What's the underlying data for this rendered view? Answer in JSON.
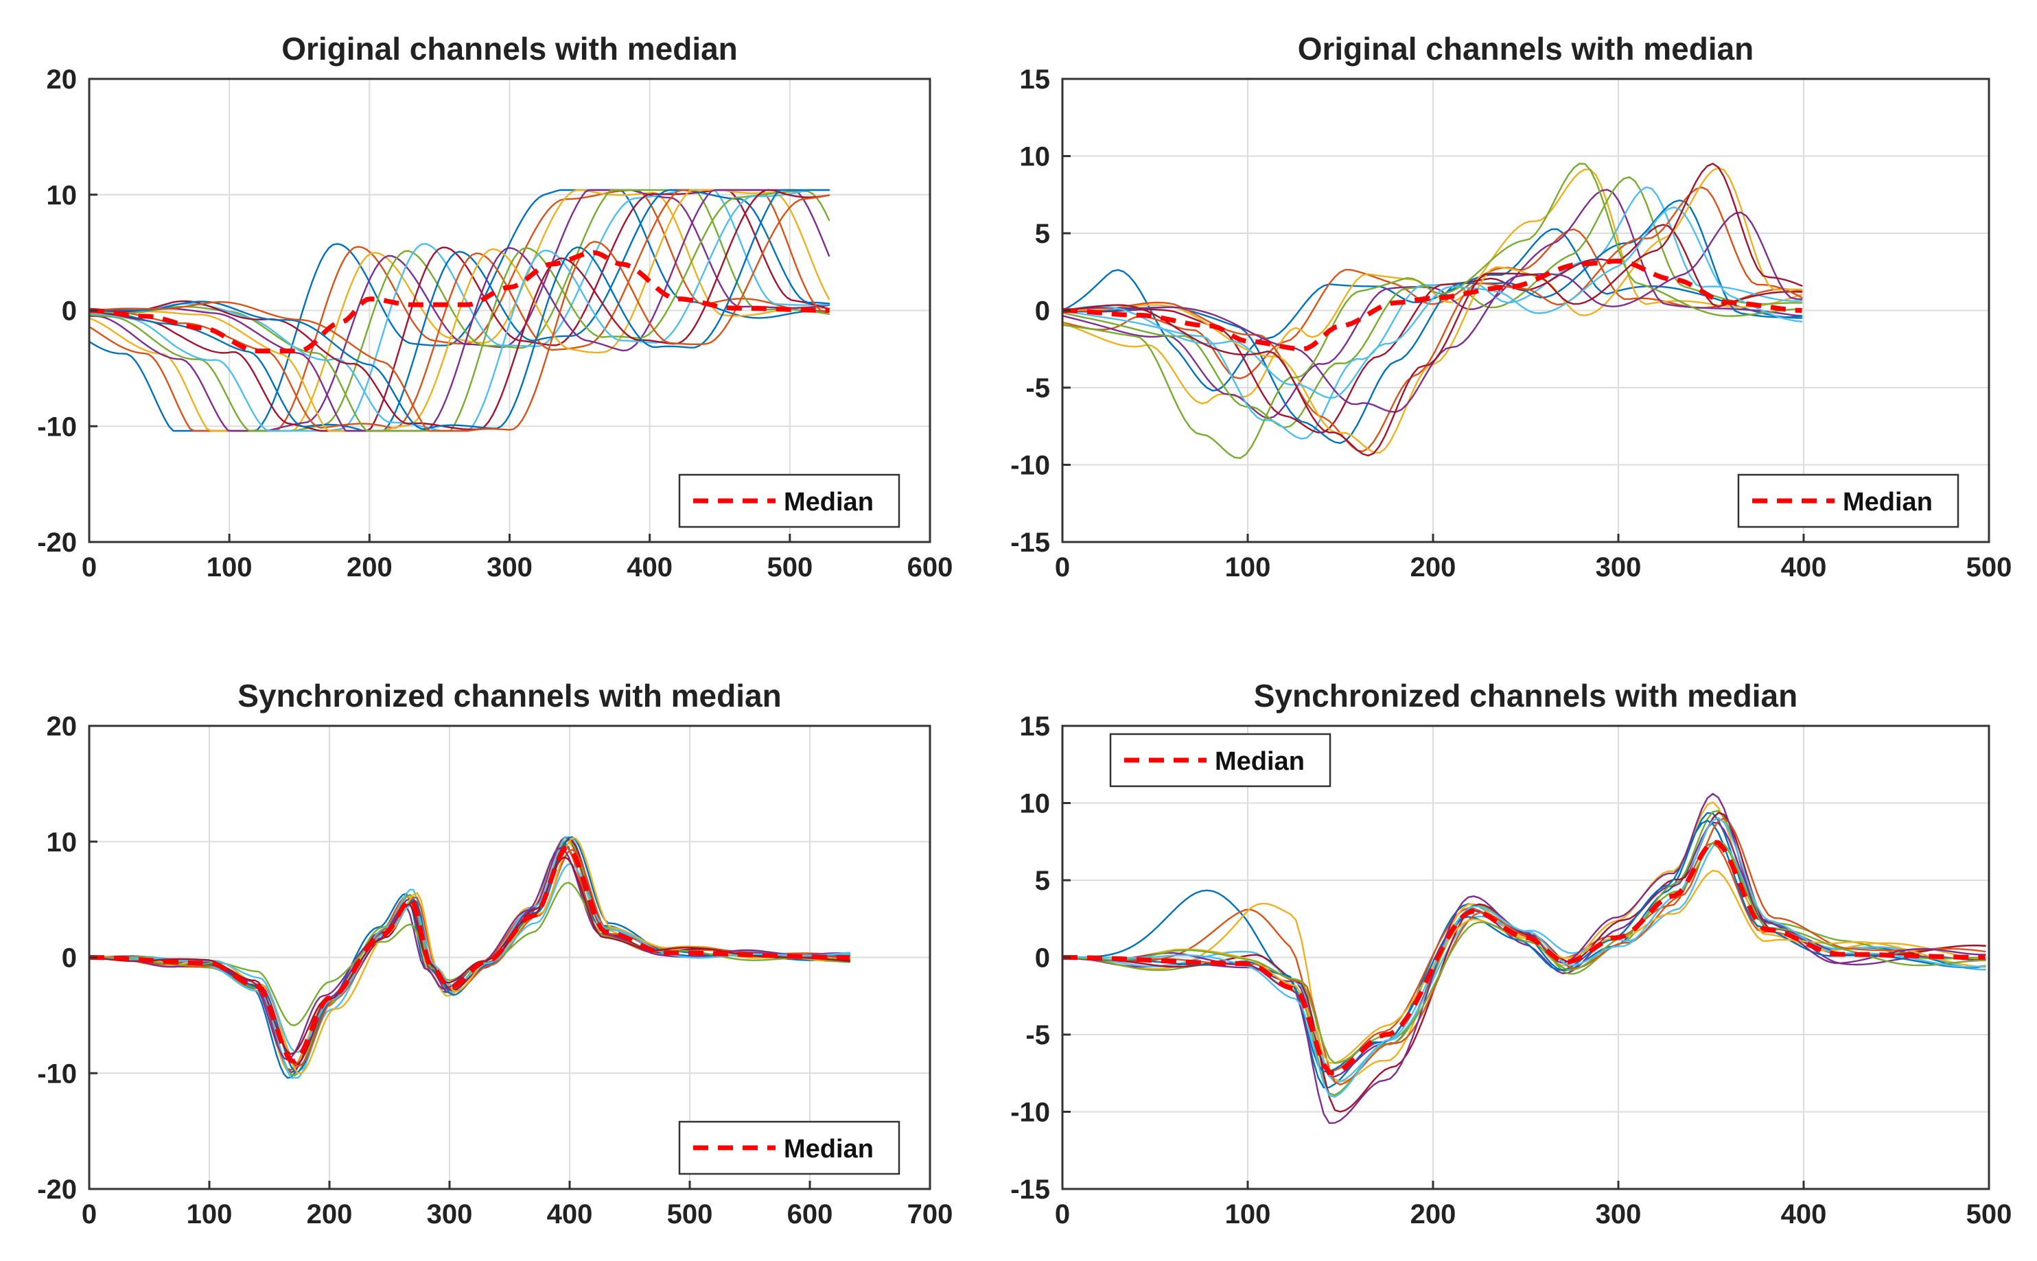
{
  "palette": [
    "#0072BD",
    "#D95319",
    "#EDB120",
    "#7E2F8E",
    "#77AC30",
    "#4DBEEE",
    "#A2142F"
  ],
  "median_color": "#ff0000",
  "chart_data": [
    {
      "id": "top-left",
      "type": "line",
      "title": "Original channels with median",
      "xlim": [
        0,
        600
      ],
      "ylim": [
        -20,
        20
      ],
      "xticks": [
        0,
        100,
        200,
        300,
        400,
        500,
        600
      ],
      "yticks": [
        -20,
        -10,
        0,
        10,
        20
      ],
      "legend": {
        "label": "Median",
        "position": "bottom-right"
      },
      "template": {
        "length": 530,
        "clip": 10.4,
        "noise": 0.5,
        "points": [
          [
            0,
            0
          ],
          [
            60,
            -0.5
          ],
          [
            120,
            -4
          ],
          [
            160,
            -10.4
          ],
          [
            210,
            -10.4
          ],
          [
            270,
            5.2
          ],
          [
            325,
            -2.8
          ],
          [
            350,
            -3
          ],
          [
            420,
            10.4
          ],
          [
            470,
            10.4
          ],
          [
            520,
            0.3
          ],
          [
            600,
            0
          ]
        ]
      },
      "channels": [
        {
          "offset": -95,
          "scale": 1.0
        },
        {
          "offset": -80,
          "scale": 1.0
        },
        {
          "offset": -68,
          "scale": 1.0
        },
        {
          "offset": -55,
          "scale": 1.0
        },
        {
          "offset": -42,
          "scale": 1.0
        },
        {
          "offset": -30,
          "scale": 1.0
        },
        {
          "offset": -18,
          "scale": 1.0
        },
        {
          "offset": -6,
          "scale": 1.0
        },
        {
          "offset": 6,
          "scale": 1.0
        },
        {
          "offset": 18,
          "scale": 1.0
        },
        {
          "offset": 30,
          "scale": 1.0
        },
        {
          "offset": 42,
          "scale": 1.0
        },
        {
          "offset": 55,
          "scale": 1.0
        },
        {
          "offset": 68,
          "scale": 1.0
        },
        {
          "offset": 80,
          "scale": 1.0
        },
        {
          "offset": 90,
          "scale": 1.0
        }
      ],
      "median": [
        [
          0,
          0
        ],
        [
          40,
          -0.5
        ],
        [
          80,
          -1.5
        ],
        [
          120,
          -3.5
        ],
        [
          150,
          -3.5
        ],
        [
          180,
          -1
        ],
        [
          200,
          1
        ],
        [
          230,
          0.5
        ],
        [
          270,
          0.5
        ],
        [
          300,
          2
        ],
        [
          330,
          4
        ],
        [
          360,
          5
        ],
        [
          380,
          4
        ],
        [
          420,
          1
        ],
        [
          460,
          0.2
        ],
        [
          530,
          0
        ]
      ]
    },
    {
      "id": "top-right",
      "type": "line",
      "title": "Original channels with median",
      "xlim": [
        0,
        500
      ],
      "ylim": [
        -15,
        15
      ],
      "xticks": [
        0,
        100,
        200,
        300,
        400,
        500
      ],
      "yticks": [
        -15,
        -10,
        -5,
        0,
        5,
        10,
        15
      ],
      "legend": {
        "label": "Median",
        "position": "bottom-right"
      },
      "template": {
        "length": 400,
        "clip": 0,
        "noise": 0.7,
        "points": [
          [
            0,
            0
          ],
          [
            80,
            -1.5
          ],
          [
            115,
            -6.5
          ],
          [
            135,
            -7.8
          ],
          [
            165,
            -3
          ],
          [
            200,
            1.8
          ],
          [
            225,
            1.8
          ],
          [
            245,
            0.6
          ],
          [
            290,
            3.5
          ],
          [
            320,
            7
          ],
          [
            350,
            0.8
          ],
          [
            400,
            0.3
          ]
        ]
      },
      "channels": [
        {
          "offset": -55,
          "scale": 0.85,
          "pre": 5.2,
          "preAt": 40
        },
        {
          "offset": -45,
          "scale": 0.9,
          "pre": 4.4,
          "preAt": 70
        },
        {
          "offset": -35,
          "scale": 1.35,
          "pre": 4.8,
          "preAt": 110
        },
        {
          "offset": -25,
          "scale": 1.0
        },
        {
          "offset": -15,
          "scale": 1.1
        },
        {
          "offset": -5,
          "scale": 1.2
        },
        {
          "offset": 5,
          "scale": 0.95
        },
        {
          "offset": 15,
          "scale": 1.0
        },
        {
          "offset": 25,
          "scale": 1.1
        },
        {
          "offset": 35,
          "scale": 1.25
        },
        {
          "offset": 45,
          "scale": 0.9
        },
        {
          "offset": -40,
          "scale": 1.25
        },
        {
          "offset": 10,
          "scale": 0.8
        },
        {
          "offset": 30,
          "scale": 1.3
        }
      ],
      "median": [
        [
          0,
          0
        ],
        [
          40,
          -0.3
        ],
        [
          80,
          -1
        ],
        [
          100,
          -2
        ],
        [
          130,
          -2.5
        ],
        [
          150,
          -1
        ],
        [
          180,
          0.5
        ],
        [
          200,
          0.8
        ],
        [
          240,
          1.5
        ],
        [
          280,
          3
        ],
        [
          300,
          3.2
        ],
        [
          330,
          2
        ],
        [
          360,
          0.5
        ],
        [
          400,
          0
        ]
      ]
    },
    {
      "id": "bottom-left",
      "type": "line",
      "title": "Synchronized channels with median",
      "xlim": [
        0,
        700
      ],
      "ylim": [
        -20,
        20
      ],
      "xticks": [
        0,
        100,
        200,
        300,
        400,
        500,
        600,
        700
      ],
      "yticks": [
        -20,
        -10,
        0,
        10,
        20
      ],
      "legend": {
        "label": "Median",
        "position": "bottom-right"
      },
      "template": {
        "length": 635,
        "clip": 10.4,
        "noise": 0.3,
        "points": [
          [
            0,
            0
          ],
          [
            100,
            -0.5
          ],
          [
            140,
            -2.5
          ],
          [
            170,
            -10
          ],
          [
            200,
            -4
          ],
          [
            245,
            2.2
          ],
          [
            268,
            5.3
          ],
          [
            285,
            -1
          ],
          [
            300,
            -3
          ],
          [
            330,
            -0.5
          ],
          [
            370,
            4
          ],
          [
            398,
            10.3
          ],
          [
            430,
            2.5
          ],
          [
            480,
            0.5
          ],
          [
            635,
            0
          ]
        ]
      },
      "channels": [
        {
          "offset": -4,
          "scale": 1.0
        },
        {
          "offset": -3,
          "scale": 0.95
        },
        {
          "offset": -2,
          "scale": 1.02
        },
        {
          "offset": -1,
          "scale": 0.98
        },
        {
          "offset": 0,
          "scale": 1.0
        },
        {
          "offset": 1,
          "scale": 1.05
        },
        {
          "offset": 2,
          "scale": 0.97
        },
        {
          "offset": 3,
          "scale": 1.0
        },
        {
          "offset": 4,
          "scale": 0.93
        },
        {
          "offset": 5,
          "scale": 1.03
        },
        {
          "offset": -5,
          "scale": 0.9
        },
        {
          "offset": 0,
          "scale": 0.6
        },
        {
          "offset": 2,
          "scale": 0.8
        },
        {
          "offset": -2,
          "scale": 0.85
        }
      ],
      "median": [
        [
          0,
          0
        ],
        [
          100,
          -0.5
        ],
        [
          140,
          -2.5
        ],
        [
          170,
          -9
        ],
        [
          200,
          -3.5
        ],
        [
          245,
          2
        ],
        [
          268,
          5
        ],
        [
          285,
          -0.8
        ],
        [
          300,
          -2.6
        ],
        [
          330,
          -0.4
        ],
        [
          370,
          3.6
        ],
        [
          398,
          9.5
        ],
        [
          430,
          2.2
        ],
        [
          480,
          0.4
        ],
        [
          635,
          0
        ]
      ]
    },
    {
      "id": "bottom-right",
      "type": "line",
      "title": "Synchronized channels with median",
      "xlim": [
        0,
        500
      ],
      "ylim": [
        -15,
        15
      ],
      "xticks": [
        0,
        100,
        200,
        300,
        400,
        500
      ],
      "yticks": [
        -15,
        -10,
        -5,
        0,
        5,
        10,
        15
      ],
      "legend": {
        "label": "Median",
        "position": "top-left"
      },
      "template": {
        "length": 500,
        "clip": 0,
        "noise": 0.5,
        "points": [
          [
            0,
            0
          ],
          [
            100,
            -0.5
          ],
          [
            125,
            -2
          ],
          [
            145,
            -9
          ],
          [
            175,
            -6
          ],
          [
            222,
            3.3
          ],
          [
            250,
            1.5
          ],
          [
            272,
            -0.5
          ],
          [
            300,
            1.5
          ],
          [
            330,
            4.5
          ],
          [
            352,
            9
          ],
          [
            380,
            2
          ],
          [
            420,
            0.3
          ],
          [
            500,
            0
          ]
        ]
      },
      "channels": [
        {
          "offset": -3,
          "scale": 1.0,
          "pre": 5.4,
          "preAt": 80
        },
        {
          "offset": -2,
          "scale": 0.9,
          "pre": 4.3,
          "preAt": 105
        },
        {
          "offset": -1,
          "scale": 1.15,
          "pre": 4.8,
          "preAt": 120
        },
        {
          "offset": 0,
          "scale": 0.95
        },
        {
          "offset": 1,
          "scale": 1.05
        },
        {
          "offset": 2,
          "scale": 0.85
        },
        {
          "offset": 3,
          "scale": 1.1
        },
        {
          "offset": -4,
          "scale": 0.9
        },
        {
          "offset": 4,
          "scale": 1.0
        },
        {
          "offset": 0,
          "scale": 0.7
        },
        {
          "offset": -1,
          "scale": 1.2
        },
        {
          "offset": 2,
          "scale": 0.8
        },
        {
          "offset": 1,
          "scale": 0.95
        }
      ],
      "median": [
        [
          0,
          0
        ],
        [
          100,
          -0.4
        ],
        [
          125,
          -2
        ],
        [
          145,
          -7.5
        ],
        [
          175,
          -5
        ],
        [
          222,
          3
        ],
        [
          250,
          1.3
        ],
        [
          272,
          -0.3
        ],
        [
          300,
          1.3
        ],
        [
          330,
          4
        ],
        [
          352,
          7.5
        ],
        [
          380,
          1.8
        ],
        [
          420,
          0.2
        ],
        [
          500,
          0
        ]
      ]
    }
  ]
}
